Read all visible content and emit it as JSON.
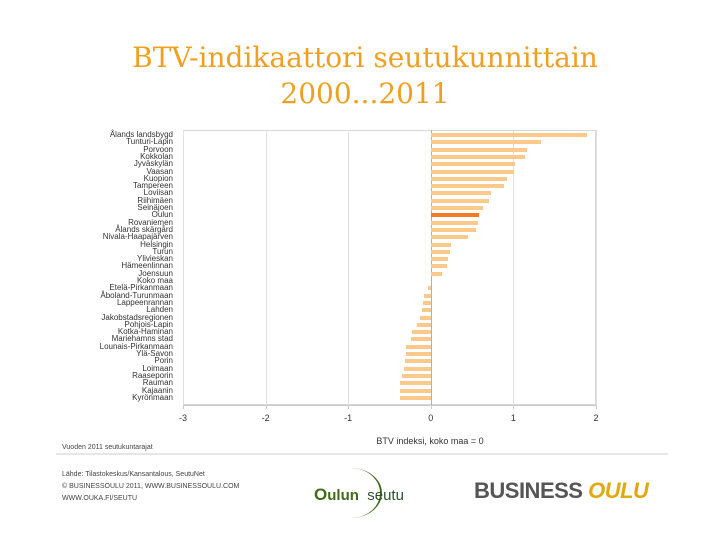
{
  "slide": {
    "title_line1": "BTV-indikaattori seutukunnittain",
    "title_line2": "2000...2011",
    "note": "Vuoden 2011 seutukuntarajat",
    "source_lines": [
      "Lähde: Tilastokeskus/Kansantalous, SeutuNet",
      "© BUSINESSOULU 2011, WWW.BUSINESSOULU.COM",
      "WWW.OUKA.FI/SEUTU"
    ],
    "logos": {
      "oulun_seutu": {
        "first": "O",
        "rest": "ulun",
        "second": "seutu"
      },
      "business_oulu": {
        "part1": "BUSINESS",
        "part2": "OULU"
      }
    },
    "colors": {
      "title": "#f0a020",
      "bar": "#fbc98a",
      "bar_highlight": "#f47b26"
    }
  },
  "chart_data": {
    "type": "bar",
    "orientation": "horizontal",
    "title": "BTV-indikaattori seutukunnittain 2000...2011",
    "xlabel": "BTV indeksi, koko maa = 0",
    "ylabel": "",
    "xlim": [
      -3,
      2
    ],
    "xticks": [
      "-3",
      "-2",
      "-1",
      "0",
      "1",
      "2"
    ],
    "grid": true,
    "highlight": "Oulun",
    "categories": [
      "Ålands landsbygd",
      "Tunturi-Lapin",
      "Porvoon",
      "Kokkolan",
      "Jyväskylän",
      "Vaasan",
      "Kuopion",
      "Tampereen",
      "Loviisan",
      "Riihimäen",
      "Seinäjoen",
      "Oulun",
      "Rovaniemen",
      "Ålands skärgård",
      "Nivala-Haapajärven",
      "Helsingin",
      "Turun",
      "Ylivieskan",
      "Hämeenlinnan",
      "Joensuun",
      "Koko maa",
      "Etelä-Pirkanmaan",
      "Åboland-Turunmaan",
      "Lappeenrannan",
      "Lahden",
      "Jakobstadsregionen",
      "Pohjois-Lapin",
      "Kotka-Haminan",
      "Mariehamns stad",
      "Lounais-Pirkanmaan",
      "Ylä-Savon",
      "Porin",
      "Loimaan",
      "Raaseporin",
      "Rauman",
      "Kajaanin",
      "Kyrönmaan"
    ],
    "values": [
      1.89,
      1.34,
      1.16,
      1.14,
      1.02,
      1.01,
      0.92,
      0.89,
      0.73,
      0.71,
      0.63,
      0.58,
      0.57,
      0.55,
      0.45,
      0.25,
      0.23,
      0.21,
      0.2,
      0.14,
      0.0,
      -0.03,
      -0.08,
      -0.09,
      -0.11,
      -0.13,
      -0.17,
      -0.23,
      -0.24,
      -0.3,
      -0.3,
      -0.31,
      -0.33,
      -0.35,
      -0.37,
      -0.37,
      -0.37
    ]
  }
}
